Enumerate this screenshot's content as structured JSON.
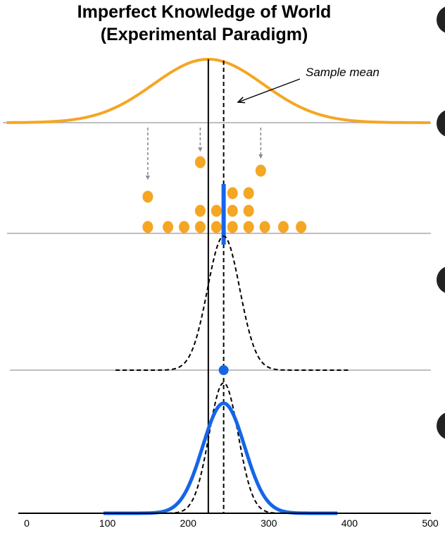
{
  "title": {
    "line1": "Imperfect Knowledge of World",
    "line2": "(Experimental Paradigm)"
  },
  "annotation": {
    "sample_mean_label": "Sample mean"
  },
  "colors": {
    "population": "#F5A623",
    "samples": "#F5A623",
    "estimate": "#1565E8",
    "divider": "#A9A9B2",
    "arrow": "#8C8C8C",
    "line": "#000000"
  },
  "chart_data": {
    "type": "scatter",
    "x_axis": {
      "range": [
        0,
        500
      ],
      "ticks": [
        0,
        100,
        200,
        300,
        400,
        500
      ]
    },
    "true_mean": 225,
    "sample_mean": 244,
    "sampled_points": [
      150,
      215,
      290
    ],
    "samples": [
      {
        "x": 150,
        "level": 0
      },
      {
        "x": 175,
        "level": 0
      },
      {
        "x": 195,
        "level": 0
      },
      {
        "x": 215,
        "level": 0
      },
      {
        "x": 235,
        "level": 0
      },
      {
        "x": 255,
        "level": 0
      },
      {
        "x": 275,
        "level": 0
      },
      {
        "x": 295,
        "level": 0
      },
      {
        "x": 318,
        "level": 0
      },
      {
        "x": 340,
        "level": 0
      },
      {
        "x": 215,
        "level": 1
      },
      {
        "x": 235,
        "level": 1
      },
      {
        "x": 255,
        "level": 1
      },
      {
        "x": 275,
        "level": 1
      },
      {
        "x": 255,
        "level": 2
      },
      {
        "x": 275,
        "level": 2
      },
      {
        "x": 150,
        "level": 2
      }
    ],
    "estimate_point": 244
  },
  "panel_letters": [
    "",
    "",
    "",
    ""
  ]
}
